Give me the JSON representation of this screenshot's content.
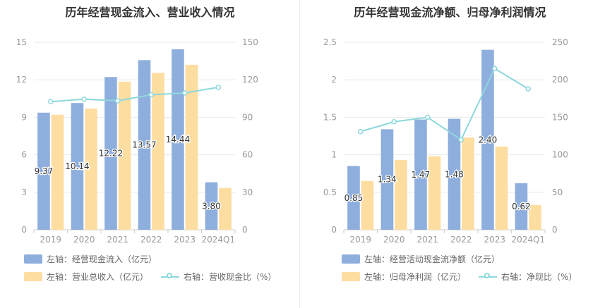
{
  "colors": {
    "bar1": "#8eaedd",
    "bar2": "#fedda0",
    "line": "#8dd8dc",
    "grid": "#e8e8e8",
    "axis_text": "#999999",
    "label_text": "#333333"
  },
  "chart_data": [
    {
      "type": "bar",
      "title": "历年经营现金流入、营业收入情况",
      "categories": [
        "2019",
        "2020",
        "2021",
        "2022",
        "2023",
        "2024Q1"
      ],
      "y_left": {
        "min": 0,
        "max": 15,
        "ticks": [
          "0",
          "3",
          "6",
          "9",
          "12",
          "15"
        ]
      },
      "y_right": {
        "min": 0,
        "max": 150,
        "ticks": [
          "0",
          "30",
          "60",
          "90",
          "120",
          "150"
        ]
      },
      "series": [
        {
          "name": "左轴：经营现金流入（亿元）",
          "kind": "bar",
          "axis": "left",
          "values": [
            9.37,
            10.14,
            12.22,
            13.57,
            14.44,
            3.8
          ],
          "labels": [
            "9.37",
            "10.14",
            "12.22",
            "13.57",
            "14.44",
            "3.80"
          ]
        },
        {
          "name": "左轴：营业总收入（亿元）",
          "kind": "bar",
          "axis": "left",
          "values": [
            9.2,
            9.7,
            11.85,
            12.55,
            13.2,
            3.35
          ]
        },
        {
          "name": "右轴：营收现金比（%）",
          "kind": "line",
          "axis": "right",
          "values": [
            102.5,
            104.5,
            103.2,
            108,
            109.5,
            114
          ]
        }
      ],
      "legend": [
        "左轴：经营现金流入（亿元）",
        "左轴：营业总收入（亿元）",
        "右轴：营收现金比（%）"
      ]
    },
    {
      "type": "bar",
      "title": "历年经营现金流净额、归母净利润情况",
      "categories": [
        "2019",
        "2020",
        "2021",
        "2022",
        "2023",
        "2024Q1"
      ],
      "y_left": {
        "min": 0,
        "max": 2.5,
        "ticks": [
          "0",
          "0.5",
          "1",
          "1.5",
          "2",
          "2.5"
        ]
      },
      "y_right": {
        "min": 0,
        "max": 250,
        "ticks": [
          "0",
          "50",
          "100",
          "150",
          "200",
          "250"
        ]
      },
      "series": [
        {
          "name": "左轴：经营活动现金流净额（亿元）",
          "kind": "bar",
          "axis": "left",
          "values": [
            0.85,
            1.34,
            1.47,
            1.48,
            2.4,
            0.62
          ],
          "labels": [
            "0.85",
            "1.34",
            "1.47",
            "1.48",
            "2.40",
            "0.62"
          ]
        },
        {
          "name": "左轴：归母净利润（亿元）",
          "kind": "bar",
          "axis": "left",
          "values": [
            0.65,
            0.93,
            0.98,
            1.23,
            1.11,
            0.33
          ]
        },
        {
          "name": "右轴：净现比（%）",
          "kind": "line",
          "axis": "right",
          "values": [
            131,
            144,
            150,
            120,
            215,
            188
          ]
        }
      ],
      "legend": [
        "左轴：经营活动现金流净额（亿元）",
        "左轴：归母净利润（亿元）",
        "右轴：净现比（%）"
      ]
    }
  ]
}
